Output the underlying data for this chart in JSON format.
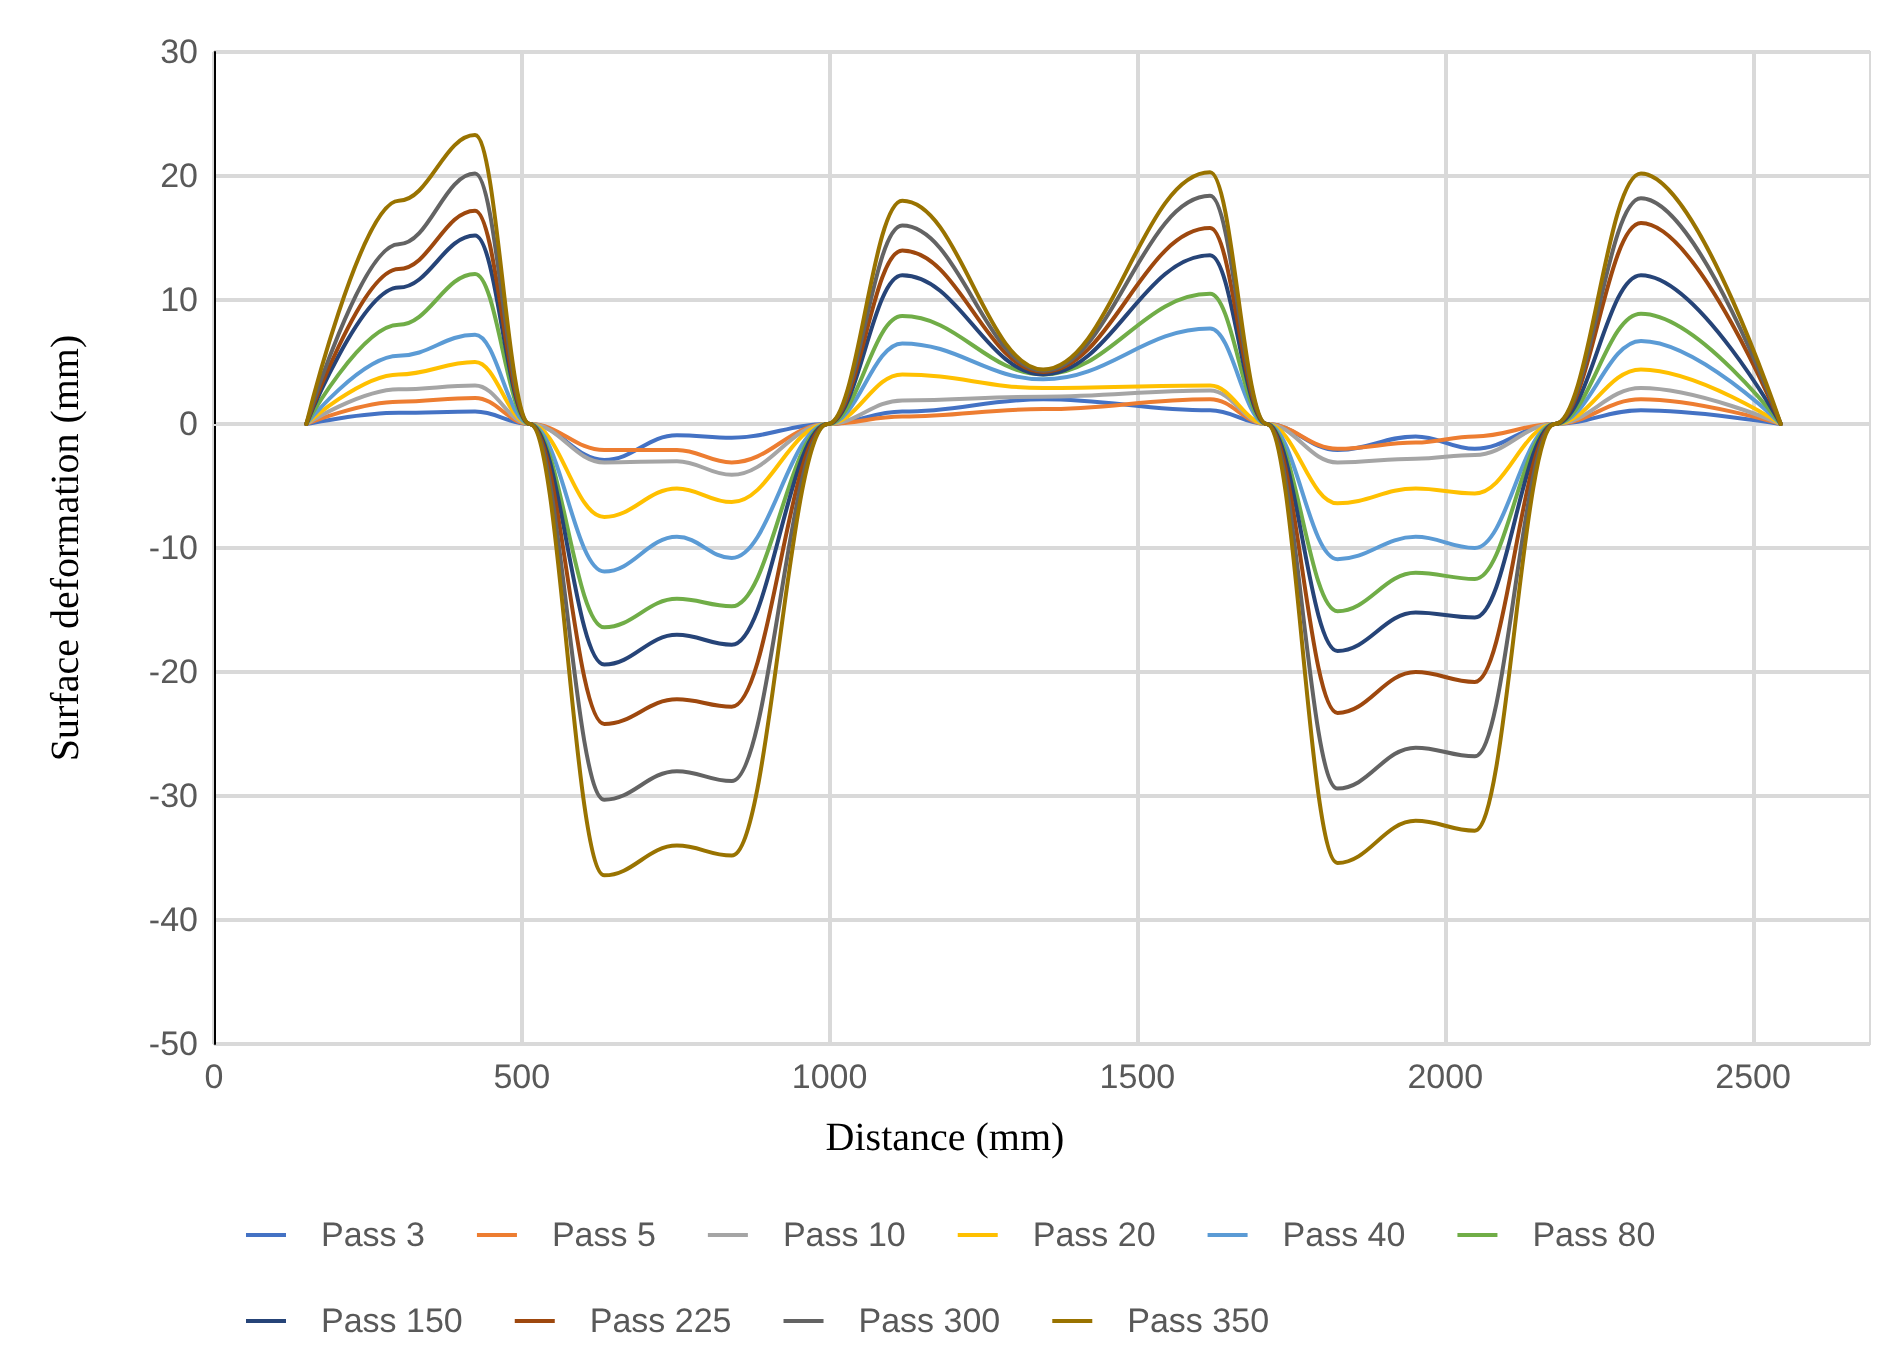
{
  "chart_data": {
    "type": "line",
    "xlabel": "Distance (mm)",
    "ylabel": "Surface deformation (mm)",
    "x": [
      150,
      300,
      424,
      513,
      634,
      752,
      841,
      997,
      1118,
      1347,
      1618,
      1710,
      1825,
      1952,
      2048,
      2178,
      2318,
      2545
    ],
    "series": [
      {
        "name": "Pass 3",
        "color": "#4472c4",
        "values": [
          0,
          0.9,
          1,
          0,
          -2.9,
          -0.9,
          -1.1,
          0,
          1.0,
          2,
          1.1,
          0,
          -2.1,
          -1,
          -2,
          0,
          1.1,
          0
        ]
      },
      {
        "name": "Pass 5",
        "color": "#ed7d31",
        "values": [
          0,
          1.8,
          2.1,
          0,
          -2.1,
          -2.1,
          -3.1,
          0,
          0.6,
          1.2,
          2,
          0,
          -2,
          -1.5,
          -1,
          0,
          2,
          0
        ]
      },
      {
        "name": "Pass 10",
        "color": "#a5a5a5",
        "values": [
          0,
          2.8,
          3.1,
          0,
          -3.1,
          -3,
          -4.1,
          0,
          1.9,
          2.2,
          2.7,
          0,
          -3.1,
          -2.8,
          -2.5,
          0,
          2.9,
          0
        ]
      },
      {
        "name": "Pass 20",
        "color": "#ffc000",
        "values": [
          0,
          4,
          5,
          0,
          -7.5,
          -5.2,
          -6.3,
          0,
          4,
          2.9,
          3.1,
          0,
          -6.4,
          -5.2,
          -5.6,
          0,
          4.4,
          0
        ]
      },
      {
        "name": "Pass 40",
        "color": "#5b9bd5",
        "values": [
          0,
          5.5,
          7.2,
          0,
          -11.9,
          -9.1,
          -10.8,
          0,
          6.5,
          3.6,
          7.7,
          0,
          -10.9,
          -9.1,
          -10,
          0,
          6.7,
          0
        ]
      },
      {
        "name": "Pass 80",
        "color": "#70ad47",
        "values": [
          0,
          8,
          12.1,
          0,
          -16.4,
          -14.1,
          -14.7,
          0,
          8.7,
          4,
          10.5,
          0,
          -15.1,
          -12,
          -12.5,
          0,
          8.9,
          0
        ]
      },
      {
        "name": "Pass 150",
        "color": "#264478",
        "values": [
          0,
          11,
          15.2,
          0,
          -19.4,
          -17,
          -17.8,
          0,
          12,
          4,
          13.6,
          0,
          -18.3,
          -15.2,
          -15.6,
          0,
          12,
          0
        ]
      },
      {
        "name": "Pass 225",
        "color": "#9e480e",
        "values": [
          0,
          12.5,
          17.2,
          0,
          -24.2,
          -22.2,
          -22.8,
          0,
          14,
          4.2,
          15.8,
          0,
          -23.3,
          -20,
          -20.8,
          0,
          16.2,
          0
        ]
      },
      {
        "name": "Pass 300",
        "color": "#636363",
        "values": [
          0,
          14.5,
          20.2,
          0,
          -30.3,
          -28,
          -28.8,
          0,
          16,
          4.3,
          18.4,
          0,
          -29.4,
          -26.1,
          -26.8,
          0,
          18.2,
          0
        ]
      },
      {
        "name": "Pass 350",
        "color": "#997300",
        "values": [
          0,
          18,
          23.3,
          0,
          -36.4,
          -34,
          -34.8,
          0,
          18,
          4.4,
          20.3,
          0,
          -35.4,
          -32,
          -32.8,
          0,
          20.2,
          0
        ]
      }
    ],
    "xlim": [
      0,
      2690
    ],
    "xticks": [
      0,
      500,
      1000,
      1500,
      2000,
      2500
    ],
    "ylim": [
      -50,
      30
    ],
    "yticks": [
      -50,
      -40,
      -30,
      -20,
      -10,
      0,
      10,
      20,
      30
    ],
    "grid": true,
    "legend": "bottom",
    "line_style": "solid"
  }
}
